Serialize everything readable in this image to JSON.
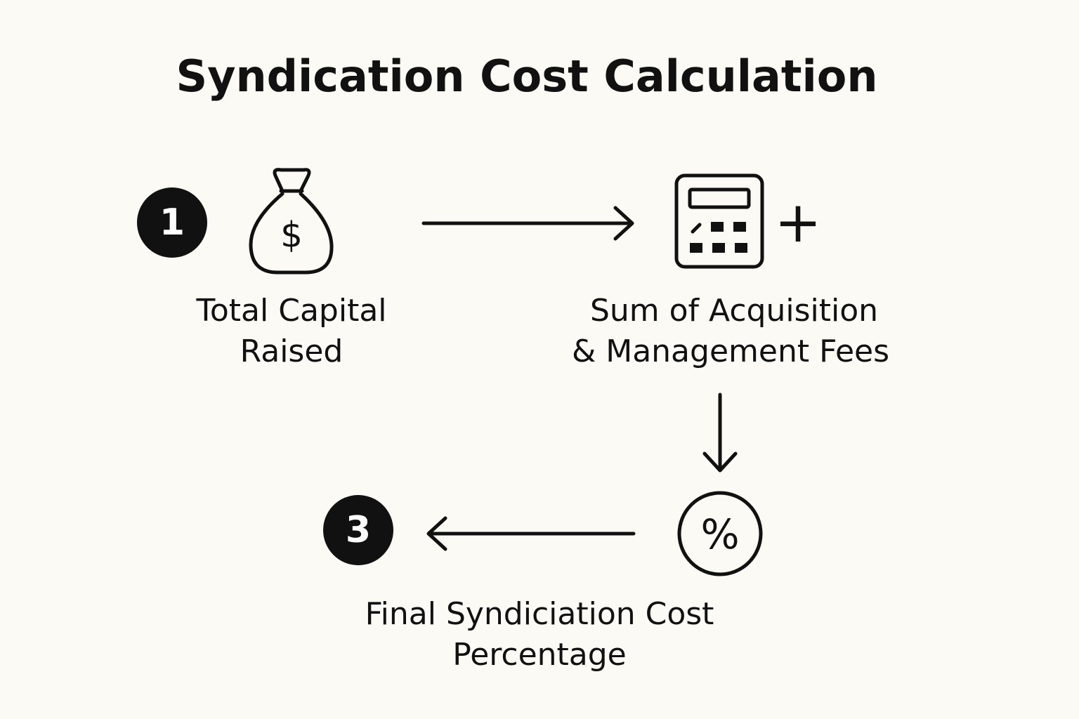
{
  "header": {
    "title": "Syndication Cost Calculation"
  },
  "steps": [
    {
      "badge": "1",
      "icon_symbol": "$",
      "label_lines": [
        "Total Capital",
        "Raised"
      ]
    },
    {
      "icon_symbol": "+",
      "label_lines": [
        "Sum of Acquisition",
        "& Management Fees"
      ]
    },
    {
      "badge": "3",
      "icon_symbol": "%",
      "label_lines": [
        "Final Syndiciation Cost",
        "Percentage"
      ]
    }
  ]
}
